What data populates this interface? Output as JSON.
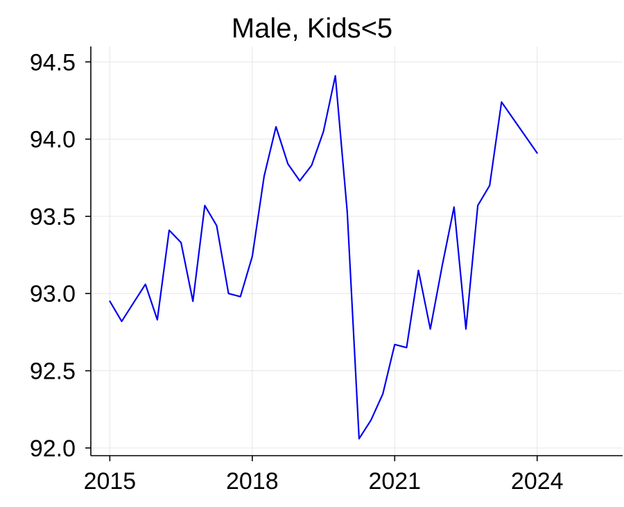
{
  "chart_data": {
    "type": "line",
    "title": "Male, Kids<5",
    "xlabel": "",
    "ylabel": "",
    "xlim": [
      2014.6,
      2025.8
    ],
    "ylim": [
      91.95,
      94.6
    ],
    "x_ticks": [
      {
        "value": 2015,
        "label": "2015"
      },
      {
        "value": 2018,
        "label": "2018"
      },
      {
        "value": 2021,
        "label": "2021"
      },
      {
        "value": 2024,
        "label": "2024"
      }
    ],
    "y_ticks": [
      {
        "value": 92.0,
        "label": "92.0"
      },
      {
        "value": 92.5,
        "label": "92.5"
      },
      {
        "value": 93.0,
        "label": "93.0"
      },
      {
        "value": 93.5,
        "label": "93.5"
      },
      {
        "value": 94.0,
        "label": "94.0"
      },
      {
        "value": 94.5,
        "label": "94.5"
      }
    ],
    "grid": true,
    "line_color": "#0000ee",
    "series": [
      {
        "x": [
          2015.0,
          2015.25,
          2015.5,
          2015.75,
          2016.0,
          2016.25,
          2016.5,
          2016.75,
          2017.0,
          2017.25,
          2017.5,
          2017.75,
          2018.0,
          2018.25,
          2018.5,
          2018.75,
          2019.0,
          2019.25,
          2019.5,
          2019.75,
          2020.0,
          2020.25,
          2020.5,
          2020.75,
          2021.0,
          2021.25,
          2021.5,
          2021.75,
          2022.0,
          2022.25,
          2022.5,
          2022.75,
          2023.0,
          2023.25,
          2023.5,
          2023.75,
          2024.0
        ],
        "values": [
          92.95,
          92.82,
          92.94,
          93.06,
          92.83,
          93.41,
          93.33,
          92.95,
          93.57,
          93.44,
          93.0,
          92.98,
          93.24,
          93.76,
          94.08,
          93.84,
          93.73,
          93.83,
          94.05,
          94.41,
          93.53,
          92.06,
          92.18,
          92.35,
          92.67,
          92.65,
          93.15,
          92.77,
          93.18,
          93.56,
          92.77,
          93.57,
          93.7,
          94.24,
          94.13,
          94.02,
          93.91
        ]
      }
    ]
  }
}
